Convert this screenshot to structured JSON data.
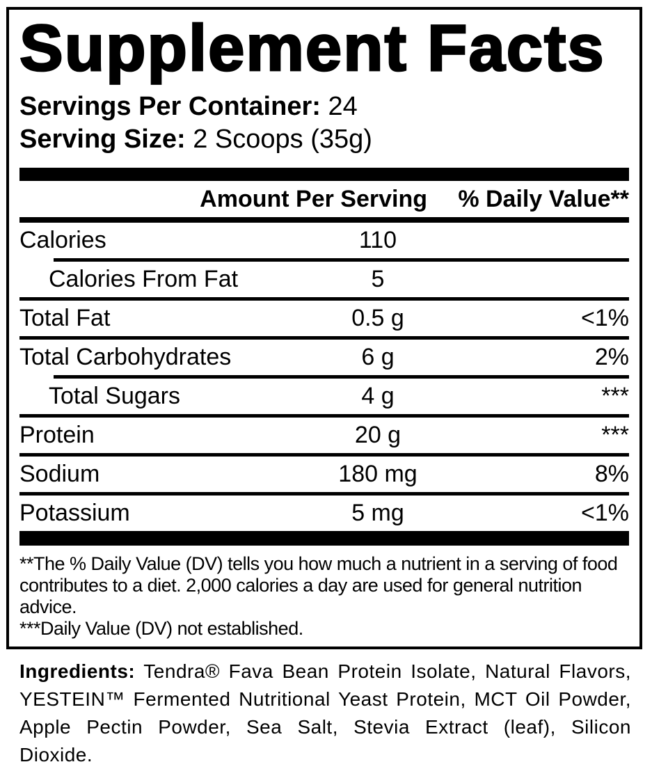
{
  "colors": {
    "foreground": "#000000",
    "background": "#ffffff"
  },
  "label": {
    "title": "Supplement Facts",
    "servings_per_container": {
      "label": "Servings Per Container:",
      "value": " 24"
    },
    "serving_size": {
      "label": "Serving Size:",
      "value": " 2 Scoops (35g)"
    },
    "columns": {
      "amount": "Amount Per Serving",
      "dv": "% Daily Value**"
    },
    "rows": [
      {
        "name": "Calories",
        "amount": "110",
        "dv": ""
      },
      {
        "name": "Calories From Fat",
        "amount": "5",
        "dv": ""
      },
      {
        "name": "Total Fat",
        "amount": "0.5 g",
        "dv": "<1%"
      },
      {
        "name": "Total Carbohydrates",
        "amount": "6 g",
        "dv": "2%"
      },
      {
        "name": "Total Sugars",
        "amount": "4 g",
        "dv": "***"
      },
      {
        "name": "Protein",
        "amount": "20 g",
        "dv": "***"
      },
      {
        "name": "Sodium",
        "amount": "180 mg",
        "dv": "8%"
      },
      {
        "name": "Potassium",
        "amount": "5 mg",
        "dv": "<1%"
      }
    ],
    "footnotes": [
      "**The % Daily Value (DV) tells you how much a nutrient in a serving of food contributes to a diet. 2,000 calories a day are used for general nutrition advice.",
      "***Daily Value (DV) not established."
    ]
  },
  "ingredients": {
    "label": "Ingredients:",
    "text": " Tendra® Fava Bean Protein Isolate, Natural Flavors, YESTEIN™ Fermented Nutritional Yeast Protein, MCT Oil Powder, Apple Pectin Powder, Sea Salt, Stevia Extract (leaf), Silicon Dioxide."
  }
}
